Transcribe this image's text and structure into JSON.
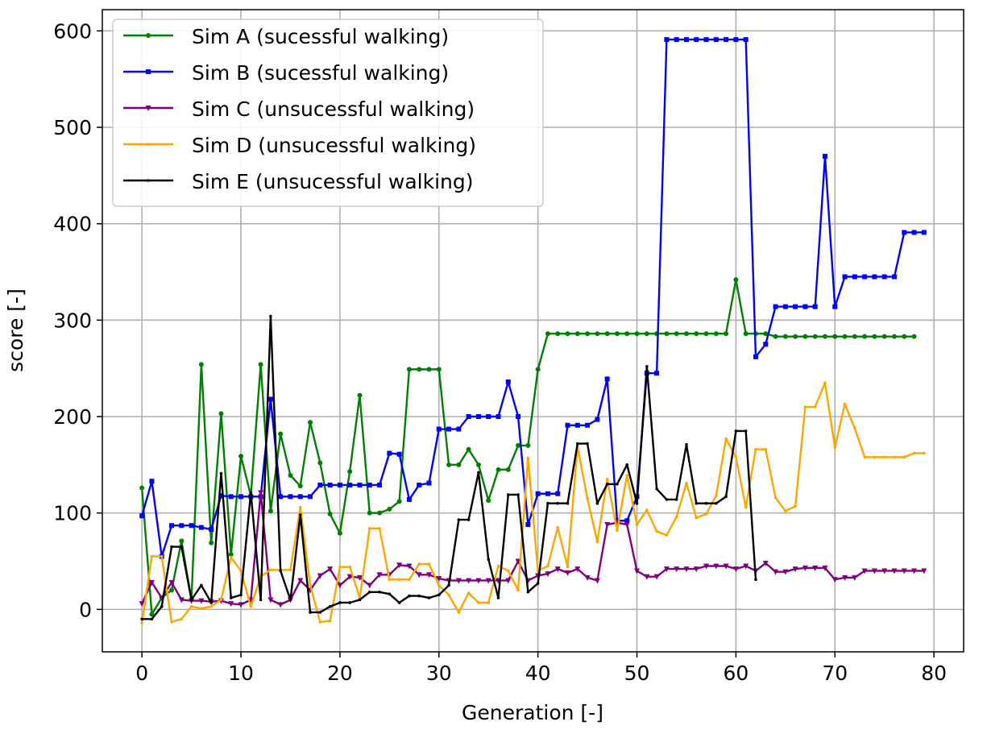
{
  "chart_data": {
    "type": "line",
    "title": "",
    "xlabel": "Generation [-]",
    "ylabel": "score [-]",
    "xlim": [
      -4,
      83
    ],
    "ylim": [
      -44,
      622
    ],
    "xticks": [
      0,
      10,
      20,
      30,
      40,
      50,
      60,
      70,
      80
    ],
    "yticks": [
      0,
      100,
      200,
      300,
      400,
      500,
      600
    ],
    "grid": true,
    "legend_position": "top-left",
    "series": [
      {
        "name": "Sim A (sucessful walking)",
        "color": "#008000",
        "marker": "circle",
        "x": [
          0,
          1,
          2,
          3,
          4,
          5,
          6,
          7,
          8,
          9,
          10,
          11,
          12,
          13,
          14,
          15,
          16,
          17,
          18,
          19,
          20,
          21,
          22,
          23,
          24,
          25,
          26,
          27,
          28,
          29,
          30,
          31,
          32,
          33,
          34,
          35,
          36,
          37,
          38,
          39,
          40,
          41,
          42,
          43,
          44,
          45,
          46,
          47,
          48,
          49,
          50,
          51,
          52,
          53,
          54,
          55,
          56,
          57,
          58,
          59,
          60,
          61,
          62,
          63,
          64,
          65,
          66,
          67,
          68,
          69,
          70,
          71,
          72,
          73,
          74,
          75,
          76,
          77,
          78
        ],
        "y": [
          126,
          -5,
          12,
          20,
          71,
          10,
          254,
          69,
          203,
          57,
          159,
          118,
          254,
          102,
          182,
          139,
          128,
          194,
          152,
          99,
          79,
          143,
          222,
          100,
          100,
          104,
          112,
          249,
          249,
          249,
          249,
          150,
          150,
          166,
          150,
          113,
          145,
          145,
          170,
          170,
          249,
          286,
          286,
          286,
          286,
          286,
          286,
          286,
          286,
          286,
          286,
          286,
          286,
          286,
          286,
          286,
          286,
          286,
          286,
          286,
          342,
          286,
          286,
          286,
          283,
          283,
          283,
          283,
          283,
          283,
          283,
          283,
          283,
          283,
          283,
          283,
          283,
          283,
          283
        ]
      },
      {
        "name": "Sim B (sucessful walking)",
        "color": "#0000ff",
        "marker": "square",
        "x": [
          0,
          1,
          2,
          3,
          4,
          5,
          6,
          7,
          8,
          9,
          10,
          11,
          12,
          13,
          14,
          15,
          16,
          17,
          18,
          19,
          20,
          21,
          22,
          23,
          24,
          25,
          26,
          27,
          28,
          29,
          30,
          31,
          32,
          33,
          34,
          35,
          36,
          37,
          38,
          39,
          40,
          41,
          42,
          43,
          44,
          45,
          46,
          47,
          48,
          49,
          50,
          51,
          52,
          53,
          54,
          55,
          56,
          57,
          58,
          59,
          60,
          61,
          62,
          63,
          64,
          65,
          66,
          67,
          68,
          69,
          70,
          71,
          72,
          73,
          74,
          75,
          76,
          77,
          78,
          79
        ],
        "y": [
          97,
          133,
          55,
          87,
          87,
          87,
          85,
          83,
          118,
          117,
          117,
          117,
          117,
          218,
          117,
          117,
          117,
          117,
          129,
          129,
          129,
          129,
          129,
          129,
          129,
          162,
          161,
          114,
          129,
          131,
          187,
          187,
          187,
          200,
          200,
          200,
          200,
          236,
          200,
          88,
          120,
          120,
          120,
          191,
          191,
          191,
          197,
          239,
          92,
          92,
          117,
          245,
          245,
          591,
          591,
          591,
          591,
          591,
          591,
          591,
          591,
          591,
          262,
          275,
          314,
          314,
          314,
          314,
          314,
          470,
          314,
          345,
          345,
          345,
          345,
          345,
          345,
          391,
          391,
          391
        ]
      },
      {
        "name": "Sim C (unsucessful walking)",
        "color": "#800080",
        "marker": "triangle",
        "x": [
          0,
          1,
          2,
          3,
          4,
          5,
          6,
          7,
          8,
          9,
          10,
          11,
          12,
          13,
          14,
          15,
          16,
          17,
          18,
          19,
          20,
          21,
          22,
          23,
          24,
          25,
          26,
          27,
          28,
          29,
          30,
          31,
          32,
          33,
          34,
          35,
          36,
          37,
          38,
          39,
          40,
          41,
          42,
          43,
          44,
          45,
          46,
          47,
          48,
          49,
          50,
          51,
          52,
          53,
          54,
          55,
          56,
          57,
          58,
          59,
          60,
          61,
          62,
          63,
          64,
          65,
          66,
          67,
          68,
          69,
          70,
          71,
          72,
          73,
          74,
          75,
          76,
          77,
          78,
          79
        ],
        "y": [
          6,
          28,
          12,
          28,
          10,
          9,
          9,
          8,
          9,
          6,
          5,
          10,
          121,
          10,
          5,
          10,
          30,
          20,
          35,
          42,
          25,
          34,
          33,
          25,
          36,
          36,
          46,
          45,
          36,
          36,
          32,
          30,
          30,
          30,
          30,
          30,
          30,
          30,
          50,
          30,
          35,
          37,
          42,
          38,
          42,
          33,
          30,
          88,
          90,
          88,
          40,
          34,
          34,
          42,
          42,
          42,
          42,
          45,
          45,
          45,
          42,
          45,
          40,
          48,
          39,
          39,
          42,
          43,
          43,
          43,
          31,
          33,
          33,
          40,
          40,
          40,
          40,
          40,
          40,
          40
        ]
      },
      {
        "name": "Sim D (unsucessful walking)",
        "color": "#ffa500",
        "marker": "dot",
        "x": [
          0,
          1,
          2,
          3,
          4,
          5,
          6,
          7,
          8,
          9,
          10,
          11,
          12,
          13,
          14,
          15,
          16,
          17,
          18,
          19,
          20,
          21,
          22,
          23,
          24,
          25,
          26,
          27,
          28,
          29,
          30,
          31,
          32,
          33,
          34,
          35,
          36,
          37,
          38,
          39,
          40,
          41,
          42,
          43,
          44,
          45,
          46,
          47,
          48,
          49,
          50,
          51,
          52,
          53,
          54,
          55,
          56,
          57,
          58,
          59,
          60,
          61,
          62,
          63,
          64,
          65,
          66,
          67,
          68,
          69,
          70,
          71,
          72,
          73,
          74,
          75,
          76,
          77,
          78,
          79
        ],
        "y": [
          -14,
          55,
          55,
          -13,
          -10,
          3,
          1,
          3,
          10,
          54,
          40,
          3,
          34,
          41,
          41,
          41,
          106,
          25,
          -13,
          -12,
          44,
          44,
          12,
          84,
          84,
          31,
          31,
          31,
          47,
          47,
          25,
          15,
          -3,
          17,
          7,
          7,
          45,
          40,
          20,
          157,
          40,
          45,
          85,
          44,
          169,
          115,
          70,
          135,
          82,
          139,
          88,
          103,
          81,
          77,
          96,
          131,
          95,
          99,
          118,
          177,
          158,
          106,
          166,
          166,
          116,
          102,
          107,
          210,
          210,
          235,
          168,
          213,
          188,
          158,
          158,
          158,
          158,
          158,
          162,
          162
        ]
      },
      {
        "name": "Sim E (unsucessful walking)",
        "color": "#000000",
        "marker": "dot",
        "x": [
          0,
          1,
          2,
          3,
          4,
          5,
          6,
          7,
          8,
          9,
          10,
          11,
          12,
          13,
          14,
          15,
          16,
          17,
          18,
          19,
          20,
          21,
          22,
          23,
          24,
          25,
          26,
          27,
          28,
          29,
          30,
          31,
          32,
          33,
          34,
          35,
          36,
          37,
          38,
          39,
          40,
          41,
          42,
          43,
          44,
          45,
          46,
          47,
          48,
          49,
          50,
          51,
          52,
          53,
          54,
          55,
          56,
          57,
          58,
          59,
          60,
          61,
          62
        ],
        "y": [
          -10,
          -10,
          3,
          65,
          65,
          10,
          25,
          7,
          141,
          12,
          15,
          121,
          10,
          304,
          40,
          10,
          98,
          -3,
          -3,
          3,
          7,
          7,
          10,
          18,
          18,
          16,
          7,
          14,
          14,
          12,
          15,
          25,
          93,
          93,
          142,
          52,
          12,
          119,
          119,
          18,
          27,
          110,
          110,
          110,
          172,
          172,
          110,
          130,
          130,
          150,
          110,
          252,
          125,
          114,
          114,
          171,
          110,
          110,
          110,
          117,
          185,
          185,
          31
        ]
      }
    ]
  }
}
